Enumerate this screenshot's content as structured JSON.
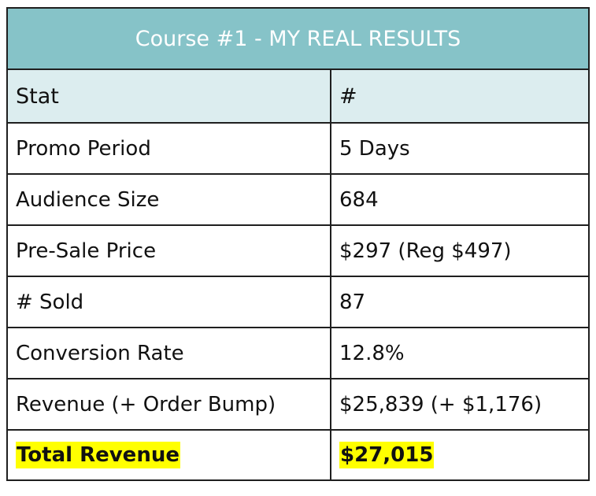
{
  "table": {
    "title": "Course #1 - MY REAL RESULTS",
    "headers": {
      "stat": "Stat",
      "value": "#"
    },
    "rows": [
      {
        "stat": "Promo Period",
        "value": "5 Days"
      },
      {
        "stat": "Audience Size",
        "value": "684"
      },
      {
        "stat": "Pre-Sale Price",
        "value": "$297 (Reg $497)"
      },
      {
        "stat": "# Sold",
        "value": "87"
      },
      {
        "stat": "Conversion Rate",
        "value": "12.8%"
      },
      {
        "stat": "Revenue (+ Order Bump)",
        "value": "$25,839 (+ $1,176)"
      }
    ],
    "total": {
      "stat": "Total Revenue",
      "value": "$27,015"
    }
  },
  "colors": {
    "title_bg": "#86c3c8",
    "header_bg": "#dcedef",
    "highlight": "#ffff00",
    "border": "#1f1f1f"
  }
}
